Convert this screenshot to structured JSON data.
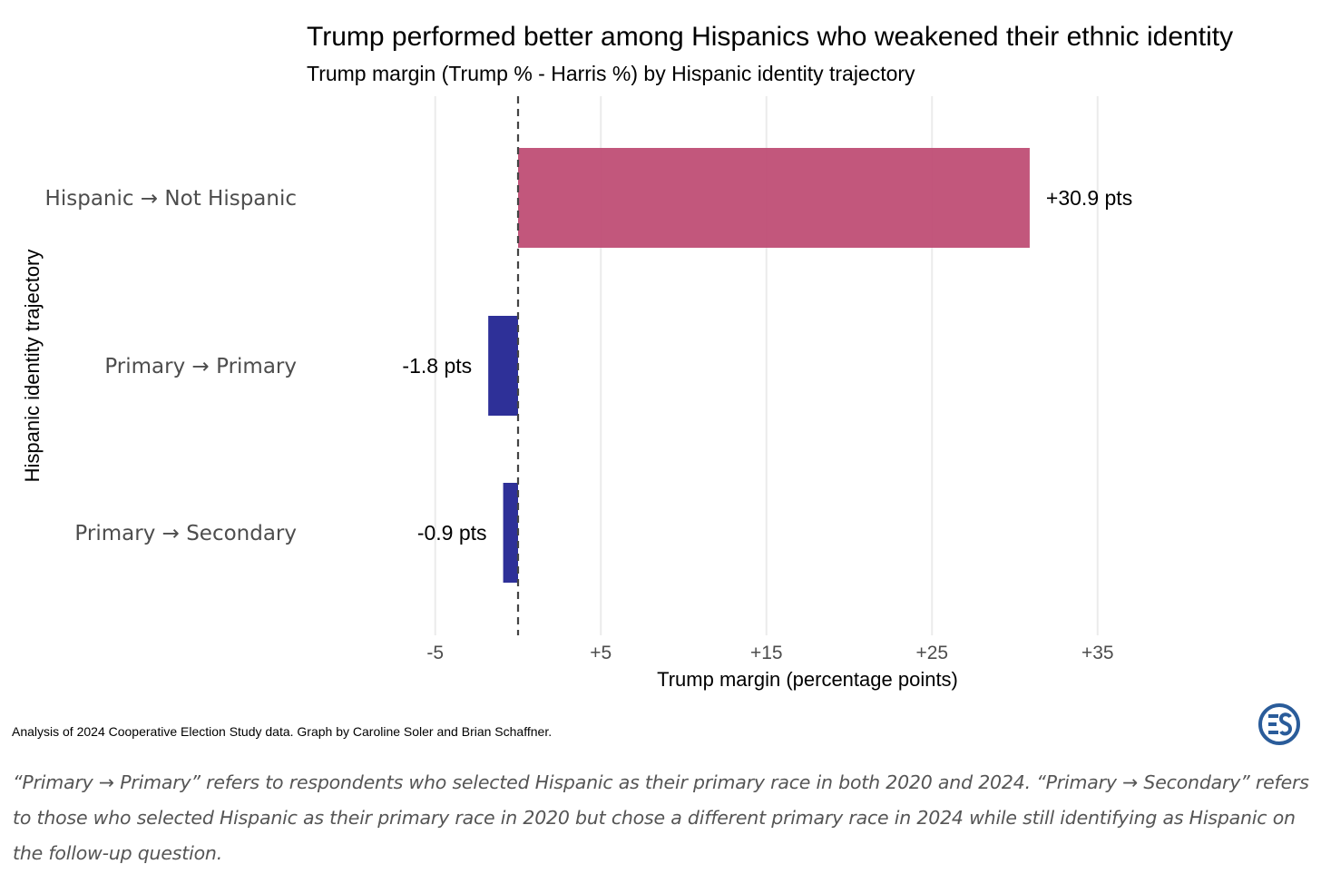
{
  "chart_data": {
    "type": "bar",
    "orientation": "horizontal",
    "title": "Trump performed better among Hispanics who weakened their ethnic identity",
    "subtitle": "Trump margin (Trump % - Harris %) by Hispanic identity trajectory",
    "xlabel": "Trump margin (percentage points)",
    "ylabel": "Hispanic identity trajectory",
    "categories": [
      "Hispanic → Not Hispanic",
      "Primary → Primary",
      "Primary → Secondary"
    ],
    "values": [
      30.9,
      -1.8,
      -0.9
    ],
    "data_labels": [
      "+30.9 pts",
      "-1.8 pts",
      "-0.9 pts"
    ],
    "xticks": [
      -5,
      5,
      15,
      25,
      35
    ],
    "xtick_labels": [
      "-5",
      "+5",
      "+15",
      "+25",
      "+35"
    ],
    "xlim": [
      -10,
      40
    ],
    "reference_line": 0,
    "grid": "vertical major",
    "colors": {
      "positive": "#bd4a72",
      "negative": "#232592",
      "grid": "#ebebeb",
      "reference": "#444444"
    }
  },
  "caption": "Analysis of 2024 Cooperative Election Study data. Graph by Caroline Soler and Brian Schaffner.",
  "note": "“Primary → Primary” refers to respondents who selected Hispanic as their primary race in both 2020 and 2024. “Primary → Secondary” refers to those who selected Hispanic as their primary race in 2020 but chose a different primary race in 2024 while still identifying as Hispanic on the follow-up question.",
  "logo": {
    "icon": "ces-logo-icon",
    "color": "#2a5c9a"
  }
}
